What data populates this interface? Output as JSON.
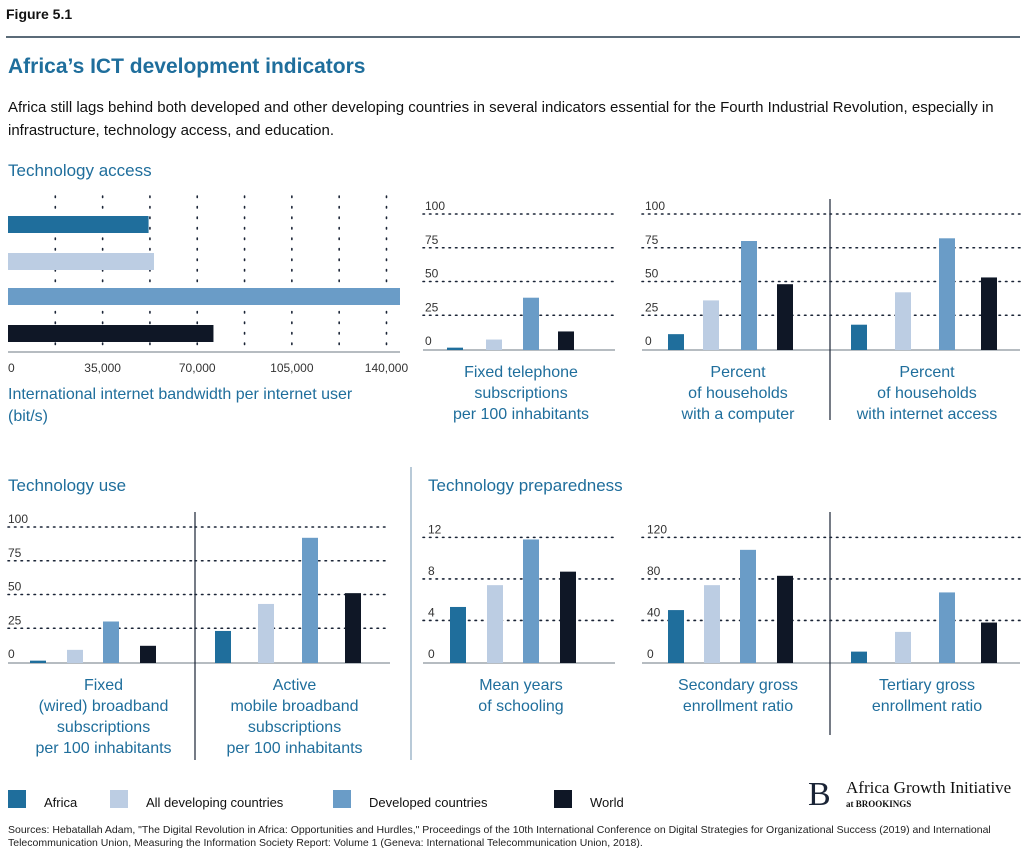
{
  "figure_label": "Figure 5.1",
  "title": "Africa’s ICT development indicators",
  "subtitle": "Africa still lags behind both developed and other developing countries in several indicators essential for the Fourth Industrial Revolution, especially in infrastructure, technology access, and education.",
  "sections": {
    "access": "Technology access",
    "use": "Technology use",
    "preparedness": "Technology preparedness"
  },
  "colors": {
    "Africa": "#1f6e9c",
    "All developing countries": "#bccde3",
    "Developed countries": "#6a9cc7",
    "World": "#0f1726",
    "title": "#1f6e9c",
    "grid": "#1a2436"
  },
  "legend": [
    "Africa",
    "All developing countries",
    "Developed countries",
    "World"
  ],
  "logo": {
    "letter": "B",
    "name": "Africa Growth Initiative",
    "sub": "at BROOKINGS"
  },
  "sources": "Sources: Hebatallah Adam, \"The Digital Revolution in Africa: Opportunities and Hurdles,\" Proceedings of the 10th International Conference on Digital Strategies for Organizational Success (2019) and International Telecommunication Union, Measuring the Information Society Report: Volume 1 (Geneva: International Telecommunication Union, 2018).",
  "chart_data": [
    {
      "id": "bandwidth",
      "type": "bar",
      "orientation": "horizontal",
      "series": [
        {
          "name": "Africa",
          "values": [
            52000
          ]
        },
        {
          "name": "All developing countries",
          "values": [
            54000
          ]
        },
        {
          "name": "Developed countries",
          "values": [
            145000
          ]
        },
        {
          "name": "World",
          "values": [
            76000
          ]
        }
      ],
      "xlim": [
        0,
        145000
      ],
      "ticks": [
        0,
        35000,
        70000,
        105000,
        140000
      ],
      "tick_labels": [
        "0",
        "35,000",
        "70,000",
        "105,000",
        "140,000"
      ],
      "label_lines": [
        "International internet bandwidth per internet user",
        "(bit/s)"
      ]
    },
    {
      "id": "fixed-telephone",
      "type": "bar",
      "categories": [
        "Africa",
        "All developing countries",
        "Developed countries",
        "World"
      ],
      "values": [
        1,
        7,
        38,
        13
      ],
      "ylim": [
        0,
        100
      ],
      "ticks": [
        0,
        25,
        50,
        75,
        100
      ],
      "label_lines": [
        "Fixed telephone",
        "subscriptions",
        "per 100 inhabitants"
      ]
    },
    {
      "id": "computer",
      "type": "bar",
      "categories": [
        "Africa",
        "All developing countries",
        "Developed countries",
        "World"
      ],
      "values": [
        11,
        36,
        80,
        48
      ],
      "ylim": [
        0,
        100
      ],
      "ticks": [
        0,
        25,
        50,
        75,
        100
      ],
      "label_lines": [
        "Percent",
        "of households",
        "with a computer"
      ]
    },
    {
      "id": "internet-access",
      "type": "bar",
      "categories": [
        "Africa",
        "All developing countries",
        "Developed countries",
        "World"
      ],
      "values": [
        18,
        42,
        82,
        53
      ],
      "ylim": [
        0,
        100
      ],
      "label_lines": [
        "Percent",
        "of households",
        "with internet access"
      ]
    },
    {
      "id": "fixed-broadband",
      "type": "bar",
      "categories": [
        "Africa",
        "All developing countries",
        "Developed countries",
        "World"
      ],
      "values": [
        1,
        9,
        30,
        12
      ],
      "ylim": [
        0,
        100
      ],
      "ticks": [
        0,
        25,
        50,
        75,
        100
      ],
      "label_lines": [
        "Fixed",
        "(wired) broadband",
        "subscriptions",
        "per 100 inhabitants"
      ]
    },
    {
      "id": "mobile-broadband",
      "type": "bar",
      "categories": [
        "Africa",
        "All developing countries",
        "Developed countries",
        "World"
      ],
      "values": [
        23,
        43,
        92,
        51
      ],
      "ylim": [
        0,
        100
      ],
      "label_lines": [
        "Active",
        "mobile broadband",
        "subscriptions",
        "per 100 inhabitants"
      ]
    },
    {
      "id": "schooling",
      "type": "bar",
      "categories": [
        "Africa",
        "All developing countries",
        "Developed countries",
        "World"
      ],
      "values": [
        5.3,
        7.4,
        11.8,
        8.7
      ],
      "ylim": [
        0,
        13
      ],
      "ticks": [
        0,
        4,
        8,
        12
      ],
      "label_lines": [
        "Mean years",
        "of schooling"
      ]
    },
    {
      "id": "secondary",
      "type": "bar",
      "categories": [
        "Africa",
        "All developing countries",
        "Developed countries",
        "World"
      ],
      "values": [
        50,
        74,
        108,
        83
      ],
      "ylim": [
        0,
        130
      ],
      "ticks": [
        0,
        40,
        80,
        120
      ],
      "label_lines": [
        "Secondary gross",
        "enrollment ratio"
      ]
    },
    {
      "id": "tertiary",
      "type": "bar",
      "categories": [
        "Africa",
        "All developing countries",
        "Developed countries",
        "World"
      ],
      "values": [
        10,
        29,
        67,
        38
      ],
      "ylim": [
        0,
        130
      ],
      "label_lines": [
        "Tertiary gross",
        "enrollment ratio"
      ]
    }
  ]
}
